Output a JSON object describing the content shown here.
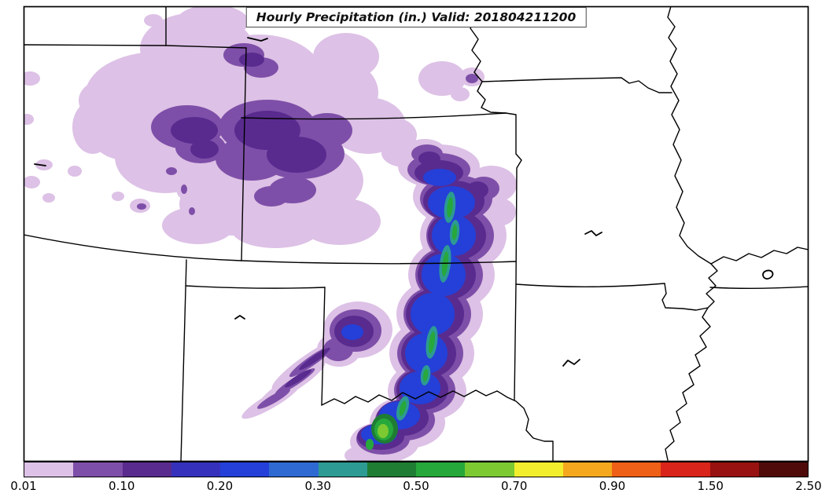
{
  "title": "Hourly Precipitation (in.) Valid: 201804211200",
  "colorbar": {
    "labels": [
      "0.01",
      "0.10",
      "0.20",
      "0.30",
      "0.50",
      "0.70",
      "0.90",
      "1.50",
      "2.50"
    ],
    "colors": [
      "#ddc1e6",
      "#7e4fa8",
      "#592b8f",
      "#3531bc",
      "#2440d8",
      "#2e6ad2",
      "#2d9a93",
      "#1e7d33",
      "#27a83b",
      "#7cc932",
      "#f2ee2d",
      "#f5a81e",
      "#ee5f17",
      "#d8241a",
      "#971210",
      "#4f0b09"
    ]
  },
  "map": {
    "background_color": "#ffffff",
    "frame_color": "#000000",
    "state_line_color": "#000000"
  }
}
